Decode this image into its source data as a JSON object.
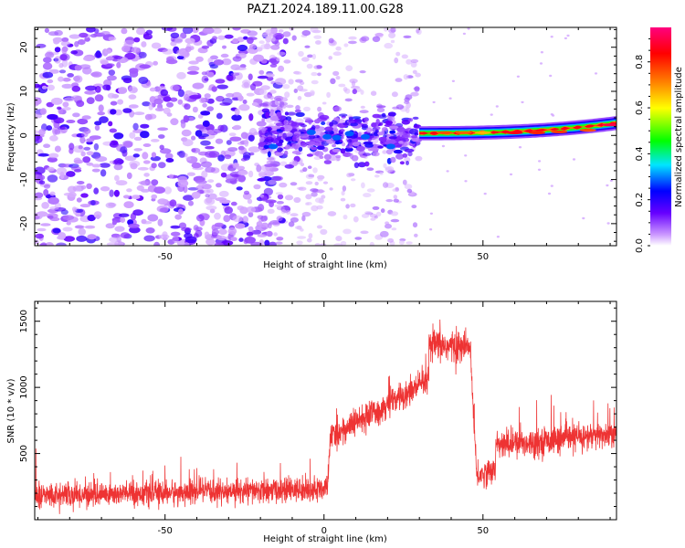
{
  "figure": {
    "title": "PAZ1.2024.189.11.00.G28"
  },
  "chart_data": [
    {
      "type": "heatmap",
      "title": "PAZ1.2024.189.11.00.G28",
      "xlabel": "Height of straight line (km)",
      "ylabel": "Frequency (Hz)",
      "xlim": [
        -91,
        92
      ],
      "ylim": [
        -25,
        24.5
      ],
      "x_ticks": [
        -50,
        0,
        50
      ],
      "y_ticks": [
        -20,
        -10,
        0,
        10,
        20
      ],
      "colorbar": {
        "label": "Normalized spectral amplitude",
        "range": [
          0,
          0.95
        ],
        "ticks": [
          0.0,
          0.2,
          0.4,
          0.6,
          0.8
        ],
        "colormap": [
          "#ffffff",
          "#cc99ff",
          "#6600ff",
          "#0000ff",
          "#00e5ff",
          "#00ff00",
          "#ffff00",
          "#ff8000",
          "#ff0000",
          "#ff007f"
        ]
      },
      "regions": [
        {
          "x_range": [
            -91,
            -20
          ],
          "description_value": "scattered purple noise",
          "amplitude": 0.1
        },
        {
          "x_range": [
            -20,
            30
          ],
          "freq_band": [
            -8,
            8
          ],
          "amplitude": 0.2
        },
        {
          "x_range": [
            30,
            92
          ],
          "freq_center_start": 0.5,
          "freq_center_end": 2.8,
          "amplitude": 0.9
        }
      ],
      "grid": false
    },
    {
      "type": "line",
      "xlabel": "Height of straight line (km)",
      "ylabel": "SNR (10 * v/v)",
      "xlim": [
        -91,
        92
      ],
      "ylim": [
        0,
        1650
      ],
      "x_ticks": [
        -50,
        0,
        50
      ],
      "y_ticks": [
        500,
        1000,
        1500
      ],
      "line_color": "#ee3333",
      "segments": [
        {
          "x": [
            -91,
            1
          ],
          "mean": [
            180,
            230
          ],
          "noise": 65
        },
        {
          "x": [
            1,
            2
          ],
          "mean": [
            230,
            620
          ],
          "noise": 60
        },
        {
          "x": [
            2,
            33
          ],
          "mean": [
            620,
            1050
          ],
          "noise": 75
        },
        {
          "x": [
            33,
            46
          ],
          "mean": [
            1320,
            1300
          ],
          "noise": 90
        },
        {
          "x": [
            46,
            48
          ],
          "mean": [
            1300,
            330
          ],
          "noise": 60
        },
        {
          "x": [
            48,
            54
          ],
          "mean": [
            330,
            380
          ],
          "noise": 70
        },
        {
          "x": [
            54,
            92
          ],
          "mean": [
            560,
            650
          ],
          "noise": 75
        }
      ],
      "grid": false
    }
  ]
}
